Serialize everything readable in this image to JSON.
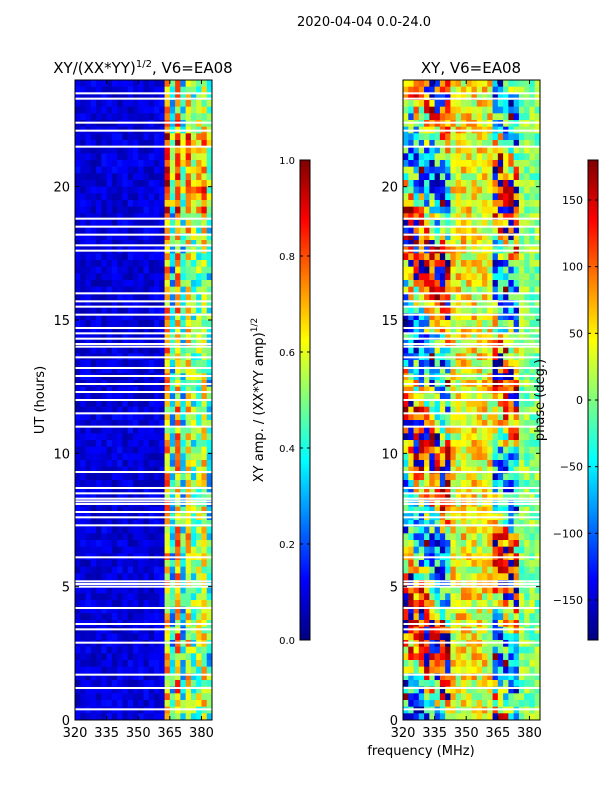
{
  "figure": {
    "suptitle": "2020-04-04 0.0-24.0",
    "xlabel": "frequency (MHz)"
  },
  "colormap": [
    "#00007f",
    "#0000ff",
    "#007fff",
    "#00ffff",
    "#7fff7f",
    "#ffff00",
    "#ff7f00",
    "#ff0000",
    "#7f0000"
  ],
  "chart_data": [
    {
      "type": "heatmap",
      "title_main": "XY/(XX*YY)",
      "title_exp": "1/2",
      "title_tail": ", V6=EA08",
      "ylabel": "UT (hours)",
      "xlim": [
        320,
        385
      ],
      "ylim": [
        0,
        24
      ],
      "xticks": [
        320,
        335,
        350,
        365,
        380
      ],
      "yticks": [
        0,
        5,
        10,
        15,
        20
      ],
      "flagged_hours": [
        0.4,
        1.2,
        1.7,
        2.9,
        3.4,
        3.6,
        4.2,
        5.0,
        5.1,
        5.2,
        6.1,
        7.3,
        7.6,
        7.8,
        8.1,
        8.2,
        8.3,
        8.5,
        8.7,
        9.3,
        11.0,
        11.5,
        12.0,
        12.3,
        12.6,
        12.9,
        13.2,
        13.6,
        14.0,
        14.1,
        14.3,
        14.5,
        14.7,
        15.2,
        15.5,
        15.7,
        16.0,
        17.6,
        17.8,
        18.2,
        18.5,
        18.8,
        21.5,
        22.1,
        22.4,
        23.3,
        23.5
      ],
      "colorbar": {
        "label_main": "XY amp. / (XX*YY amp)",
        "label_exp": "1/2",
        "vmin": 0.0,
        "vmax": 1.0,
        "ticks": [
          "0.0",
          "0.2",
          "0.4",
          "0.6",
          "0.8",
          "1.0"
        ]
      }
    },
    {
      "type": "heatmap",
      "title": "XY, V6=EA08",
      "xlim": [
        320,
        385
      ],
      "ylim": [
        0,
        24
      ],
      "xticks": [
        320,
        335,
        350,
        365,
        380
      ],
      "yticks": [
        0,
        5,
        10,
        15,
        20
      ],
      "flagged_hours": [
        0.4,
        1.2,
        1.7,
        2.9,
        3.4,
        3.6,
        4.2,
        5.0,
        5.1,
        5.2,
        6.1,
        7.3,
        7.6,
        7.8,
        8.1,
        8.2,
        8.3,
        8.5,
        8.7,
        9.3,
        11.0,
        11.5,
        12.0,
        12.3,
        12.6,
        12.9,
        13.2,
        13.6,
        14.0,
        14.1,
        14.3,
        14.5,
        14.7,
        15.2,
        15.5,
        15.7,
        16.0,
        17.6,
        17.8,
        18.2,
        18.5,
        18.8,
        21.5,
        22.1,
        22.4,
        23.3,
        23.5
      ],
      "colorbar": {
        "label": "phase (deg.)",
        "vmin": -180,
        "vmax": 180,
        "ticks": [
          "−150",
          "−100",
          "−50",
          "0",
          "50",
          "100",
          "150"
        ]
      }
    }
  ]
}
